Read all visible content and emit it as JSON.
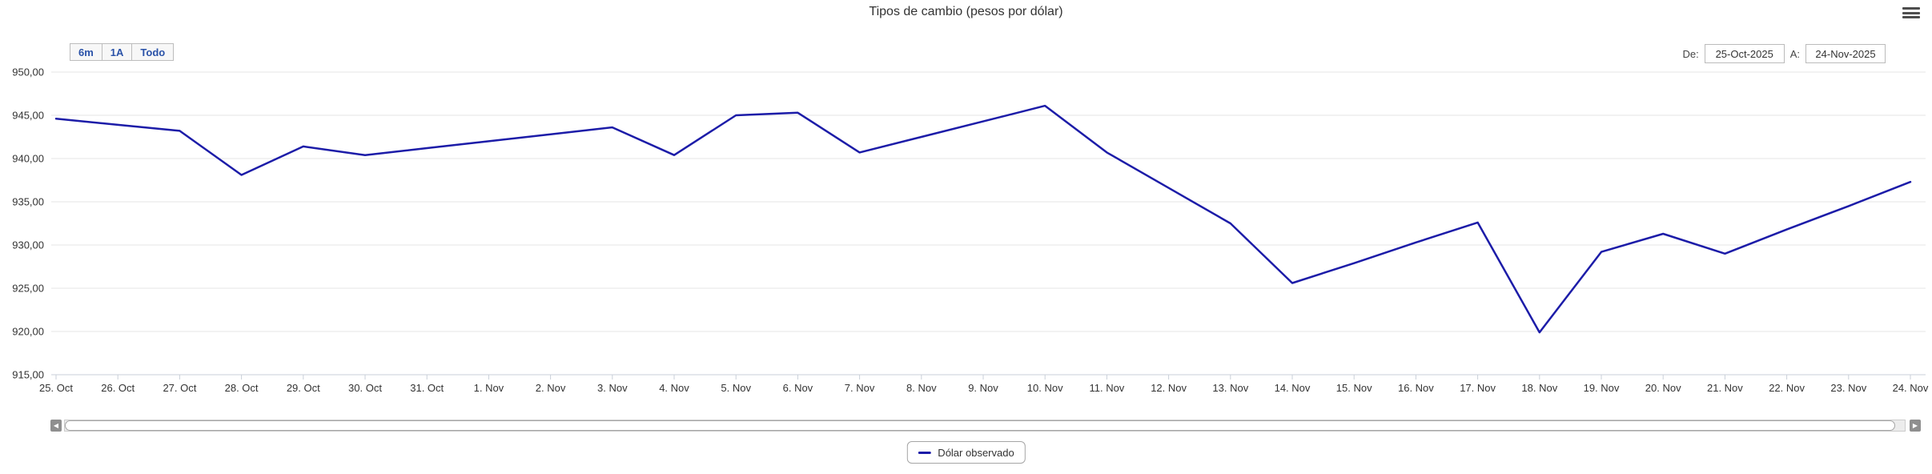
{
  "range_selector": {
    "zoom_6m": "6m",
    "zoom_1y": "1A",
    "zoom_all": "Todo",
    "from_label": "De:",
    "from_value": "25-Oct-2025",
    "to_label": "A:",
    "to_value": "24-Nov-2025"
  },
  "legend": {
    "items": [
      {
        "label": "Dólar observado"
      }
    ]
  },
  "colors": {
    "line": "#1c1ca8",
    "grid": "#e6e6e6",
    "axis": "#c9cfd8",
    "label": "#333333",
    "button_text": "#2a52a8"
  },
  "chart_data": {
    "type": "line",
    "title": "Tipos de cambio (pesos por dólar)",
    "xlabel": "",
    "ylabel": "",
    "x": [
      "25. Oct",
      "26. Oct",
      "27. Oct",
      "28. Oct",
      "29. Oct",
      "30. Oct",
      "31. Oct",
      "1. Nov",
      "2. Nov",
      "3. Nov",
      "4. Nov",
      "5. Nov",
      "6. Nov",
      "7. Nov",
      "8. Nov",
      "9. Nov",
      "10. Nov",
      "11. Nov",
      "12. Nov",
      "13. Nov",
      "14. Nov",
      "15. Nov",
      "16. Nov",
      "17. Nov",
      "18. Nov",
      "19. Nov",
      "20. Nov",
      "21. Nov",
      "22. Nov",
      "23. Nov",
      "24. Nov"
    ],
    "series": [
      {
        "name": "Dólar observado",
        "values": [
          944.6,
          943.9,
          943.2,
          938.1,
          941.4,
          940.4,
          941.2,
          942.0,
          942.8,
          943.6,
          940.4,
          945.0,
          945.3,
          940.7,
          942.5,
          944.3,
          946.1,
          940.7,
          936.6,
          932.5,
          925.6,
          927.9,
          930.3,
          932.6,
          919.9,
          929.2,
          931.3,
          929.0,
          931.8,
          934.5,
          937.3
        ]
      }
    ],
    "ylim": [
      915,
      950
    ],
    "ytick_step": 5,
    "ytick_labels": [
      "950,00",
      "945,00",
      "940,00",
      "935,00",
      "930,00",
      "925,00",
      "920,00",
      "915,00"
    ],
    "grid": "horizontal",
    "legend_position": "bottom"
  }
}
